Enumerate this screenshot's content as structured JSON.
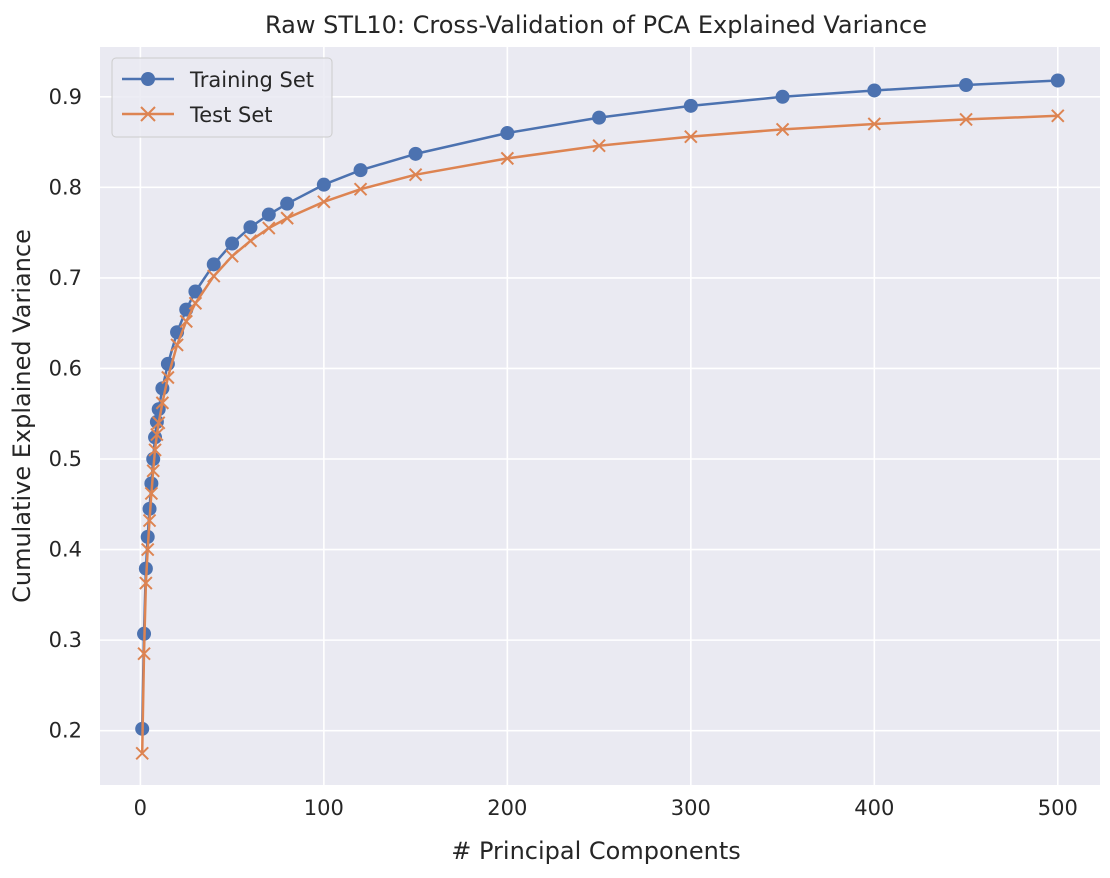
{
  "chart_data": {
    "type": "line",
    "title": "Raw STL10: Cross-Validation of PCA Explained Variance",
    "xlabel": "# Principal Components",
    "ylabel": "Cumulative Explained Variance",
    "xlim": [
      -22,
      523
    ],
    "ylim": [
      0.14,
      0.955
    ],
    "xticks": [
      0,
      100,
      200,
      300,
      400,
      500
    ],
    "xtick_labels": [
      "0",
      "100",
      "200",
      "300",
      "400",
      "500"
    ],
    "yticks": [
      0.2,
      0.3,
      0.4,
      0.5,
      0.6,
      0.7,
      0.8,
      0.9
    ],
    "ytick_labels": [
      "0.2",
      "0.3",
      "0.4",
      "0.5",
      "0.6",
      "0.7",
      "0.8",
      "0.9"
    ],
    "grid": true,
    "legend_position": "upper-left",
    "background": "#eaeaf2",
    "series": [
      {
        "name": "Training Set",
        "marker": "circle",
        "color": "#4c72b0",
        "x": [
          1,
          2,
          3,
          4,
          5,
          6,
          7,
          8,
          9,
          10,
          12,
          15,
          20,
          25,
          30,
          40,
          50,
          60,
          70,
          80,
          100,
          120,
          150,
          200,
          250,
          300,
          350,
          400,
          450,
          500
        ],
        "y": [
          0.202,
          0.307,
          0.379,
          0.414,
          0.445,
          0.473,
          0.5,
          0.524,
          0.541,
          0.555,
          0.578,
          0.605,
          0.64,
          0.665,
          0.685,
          0.715,
          0.738,
          0.756,
          0.77,
          0.782,
          0.803,
          0.819,
          0.837,
          0.86,
          0.877,
          0.89,
          0.9,
          0.907,
          0.913,
          0.918
        ]
      },
      {
        "name": "Test Set",
        "marker": "x",
        "color": "#dd8452",
        "x": [
          1,
          2,
          3,
          4,
          5,
          6,
          7,
          8,
          9,
          10,
          12,
          15,
          20,
          25,
          30,
          40,
          50,
          60,
          70,
          80,
          100,
          120,
          150,
          200,
          250,
          300,
          350,
          400,
          450,
          500
        ],
        "y": [
          0.175,
          0.285,
          0.363,
          0.4,
          0.432,
          0.462,
          0.487,
          0.51,
          0.527,
          0.54,
          0.562,
          0.59,
          0.626,
          0.652,
          0.672,
          0.702,
          0.724,
          0.741,
          0.755,
          0.766,
          0.784,
          0.798,
          0.814,
          0.832,
          0.846,
          0.856,
          0.864,
          0.87,
          0.875,
          0.879
        ]
      }
    ]
  }
}
